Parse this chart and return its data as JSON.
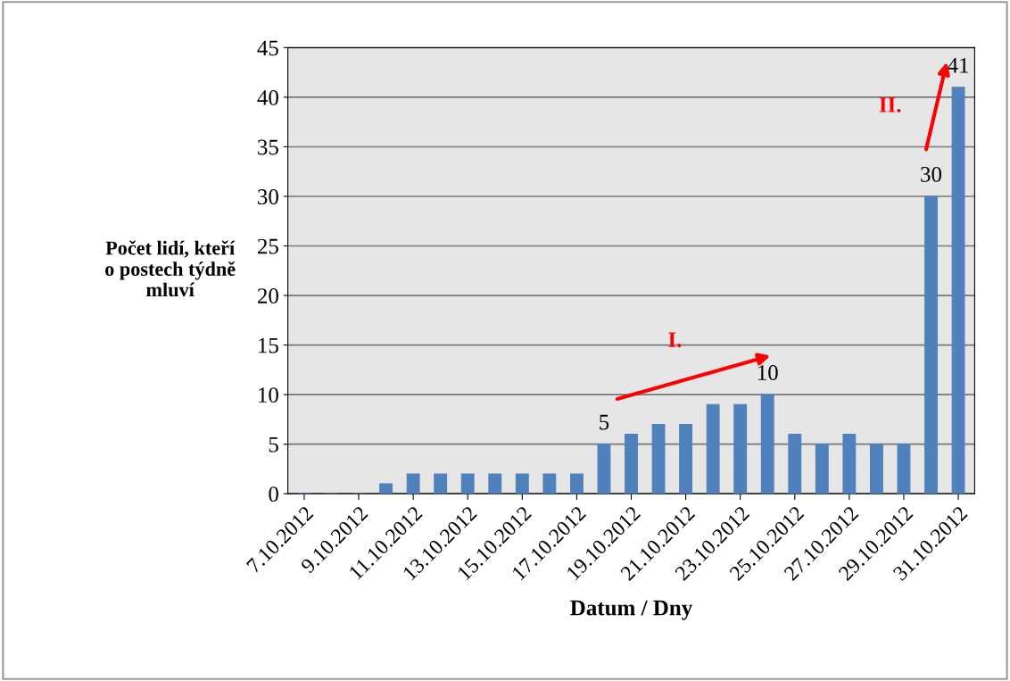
{
  "chart_data": {
    "type": "bar",
    "xlabel": "Datum / Dny",
    "ylabel": "Počet lidí, kteří\no postech týdně\nmluví",
    "categories": [
      "7.10.2012",
      null,
      "9.10.2012",
      null,
      "11.10.2012",
      null,
      "13.10.2012",
      null,
      "15.10.2012",
      null,
      "17.10.2012",
      null,
      "19.10.2012",
      null,
      "21.10.2012",
      null,
      "23.10.2012",
      null,
      "25.10.2012",
      null,
      "27.10.2012",
      null,
      "29.10.2012",
      null,
      "31.10.2012"
    ],
    "values": [
      0,
      0,
      0,
      1,
      2,
      2,
      2,
      2,
      2,
      2,
      2,
      5,
      6,
      7,
      7,
      9,
      9,
      10,
      6,
      5,
      6,
      5,
      5,
      30,
      41
    ],
    "value_labels": [
      null,
      null,
      null,
      null,
      null,
      null,
      null,
      null,
      null,
      null,
      null,
      "5",
      null,
      null,
      null,
      null,
      null,
      "10",
      null,
      null,
      null,
      null,
      null,
      "30",
      "41"
    ],
    "color": "#4f81bd",
    "ylim": [
      0,
      45
    ],
    "yticks": [
      0,
      5,
      10,
      15,
      20,
      25,
      30,
      35,
      40,
      45
    ],
    "grid": "y",
    "annotations": [
      "I.",
      "II."
    ]
  }
}
